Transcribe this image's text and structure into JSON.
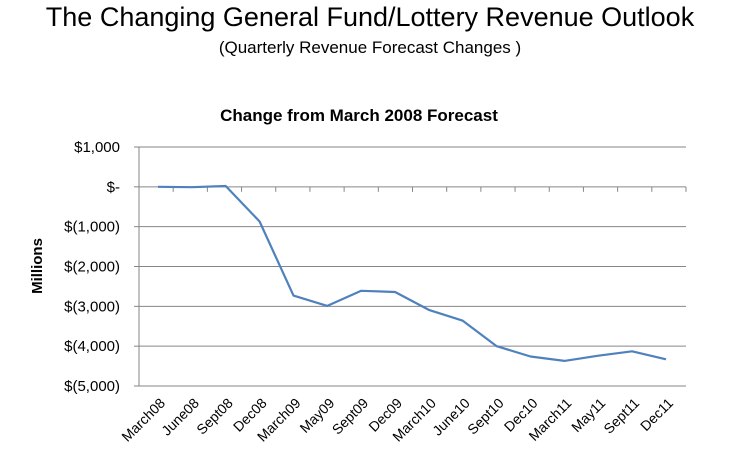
{
  "header": {
    "title": "The Changing General Fund/Lottery Revenue Outlook",
    "subtitle": "(Quarterly Revenue Forecast Changes )"
  },
  "chart_data": {
    "type": "line",
    "title": "Change from March 2008 Forecast",
    "xlabel": "",
    "ylabel": "Millions",
    "categories": [
      "March08",
      "June08",
      "Sept08",
      "Dec08",
      "March09",
      "May09",
      "Sept09",
      "Dec09",
      "March10",
      "June10",
      "Sept10",
      "Dec10",
      "March11",
      "May11",
      "Sept11",
      "Dec11"
    ],
    "series": [
      {
        "values": [
          0,
          -10,
          20,
          -870,
          -2730,
          -2990,
          -2610,
          -2640,
          -3090,
          -3360,
          -4000,
          -4260,
          -4370,
          -4240,
          -4130,
          -4330
        ]
      }
    ],
    "y_tick_labels": [
      "$1,000",
      "$-",
      "$(1,000)",
      "$(2,000)",
      "$(3,000)",
      "$(4,000)",
      "$(5,000)"
    ],
    "y_ticks": [
      1000,
      0,
      -1000,
      -2000,
      -3000,
      -4000,
      -5000
    ],
    "ylim": [
      -5000,
      1000
    ],
    "grid": true,
    "line_color": "#4F81BD",
    "legend": "none"
  }
}
